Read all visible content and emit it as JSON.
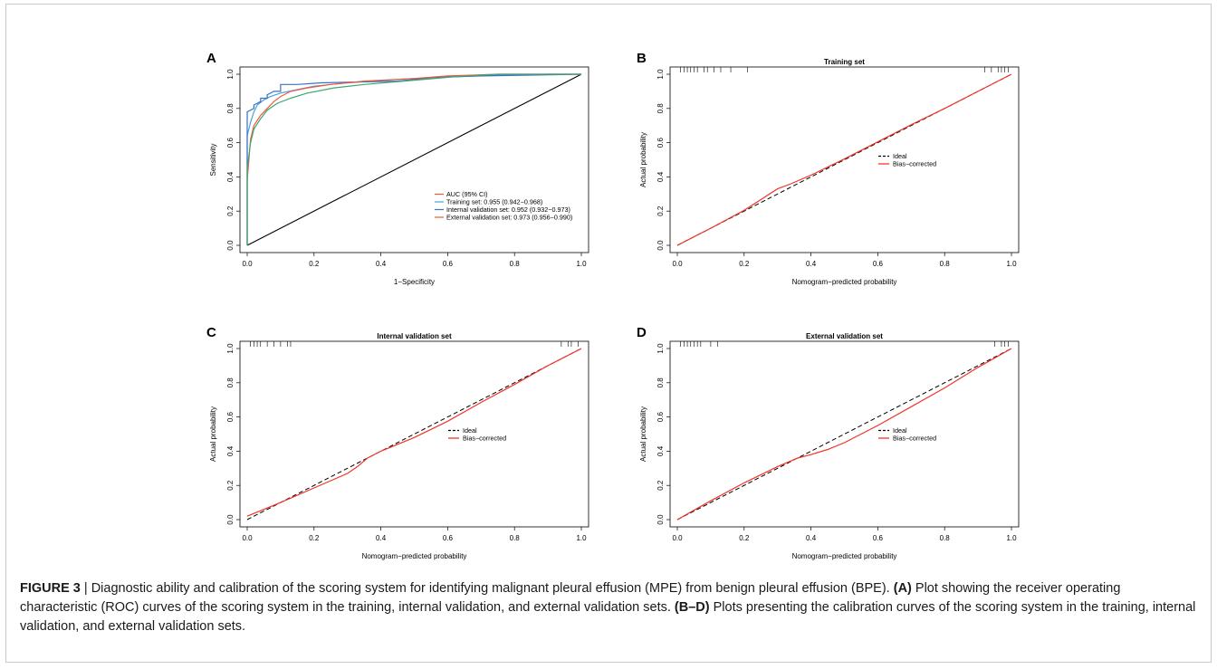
{
  "caption": {
    "figure_label": "FIGURE 3",
    "separator": " | ",
    "part1": "Diagnostic ability and calibration of the scoring system for identifying malignant pleural effusion (MPE) from benign pleural effusion (BPE). ",
    "ref_a": "(A)",
    "part2": " Plot showing the receiver operating characteristic (ROC) curves of the scoring system in the training, internal validation, and external validation sets. ",
    "ref_bd": "(B–D)",
    "part3": " Plots presenting the calibration curves of the scoring system in the training, internal validation, and external validation sets."
  },
  "colors": {
    "red": "#f0342a",
    "training": "#4aa0d8",
    "internal": "#3a70c8",
    "external_green": "#3aa870",
    "external_red": "#f05a3a",
    "diag": "#000000"
  },
  "chart_data": [
    {
      "panel": "A",
      "type": "line",
      "title": "",
      "xlabel": "1−Specificity",
      "ylabel": "Sensitivity",
      "xlim": [
        0,
        1
      ],
      "ylim": [
        0,
        1
      ],
      "xticks": [
        "0.0",
        "0.2",
        "0.4",
        "0.6",
        "0.8",
        "1.0"
      ],
      "yticks": [
        "0.0",
        "0.2",
        "0.4",
        "0.6",
        "0.8",
        "1.0"
      ],
      "legend_title": "AUC (95% CI)",
      "legend_position": "bottom-right",
      "series": [
        {
          "name": "Training set: 0.955 (0.942−0.968)",
          "color": "#4aa0d8",
          "x": [
            0,
            0.0,
            0.0,
            0.01,
            0.02,
            0.03,
            0.05,
            0.07,
            0.1,
            0.15,
            0.2,
            0.3,
            0.45,
            0.6,
            0.75,
            0.9,
            1.0
          ],
          "y": [
            0,
            0.4,
            0.64,
            0.72,
            0.78,
            0.82,
            0.85,
            0.87,
            0.89,
            0.91,
            0.93,
            0.95,
            0.97,
            0.985,
            0.995,
            1.0,
            1.0
          ]
        },
        {
          "name": "Internal validation set: 0.952 (0.932−0.973)",
          "color": "#3a70c8",
          "x": [
            0,
            0.0,
            0.0,
            0.02,
            0.02,
            0.04,
            0.04,
            0.06,
            0.06,
            0.08,
            0.1,
            0.1,
            0.15,
            0.22,
            0.45,
            0.55,
            0.7,
            1.0
          ],
          "y": [
            0,
            0.0,
            0.78,
            0.8,
            0.82,
            0.84,
            0.86,
            0.86,
            0.88,
            0.9,
            0.9,
            0.94,
            0.94,
            0.95,
            0.96,
            0.98,
            0.99,
            1.0
          ]
        },
        {
          "name": "External validation set: 0.973 (0.956−0.990)",
          "color": "#f05a3a",
          "x": [
            0,
            0.0,
            0.01,
            0.02,
            0.04,
            0.06,
            0.08,
            0.1,
            0.13,
            0.18,
            0.25,
            0.35,
            0.5,
            0.6,
            0.75,
            1.0
          ],
          "y": [
            0,
            0.38,
            0.62,
            0.7,
            0.76,
            0.8,
            0.84,
            0.87,
            0.9,
            0.92,
            0.94,
            0.96,
            0.975,
            0.99,
            1.0,
            1.0
          ]
        },
        {
          "name": "",
          "color": "#3aa870",
          "x": [
            0,
            0.0,
            0.01,
            0.02,
            0.04,
            0.06,
            0.09,
            0.13,
            0.18,
            0.26,
            0.35,
            0.5,
            0.62,
            0.75,
            1.0
          ],
          "y": [
            0,
            0.45,
            0.6,
            0.68,
            0.74,
            0.79,
            0.83,
            0.86,
            0.89,
            0.92,
            0.94,
            0.965,
            0.985,
            1.0,
            1.0
          ]
        }
      ]
    },
    {
      "panel": "B",
      "type": "line",
      "title": "Training set",
      "xlabel": "Nomogram−predicted probability",
      "ylabel": "Actual probability",
      "xlim": [
        0,
        1
      ],
      "ylim": [
        0,
        1
      ],
      "xticks": [
        "0.0",
        "0.2",
        "0.4",
        "0.6",
        "0.8",
        "1.0"
      ],
      "yticks": [
        "0.0",
        "0.2",
        "0.4",
        "0.6",
        "0.8",
        "1.0"
      ],
      "legend_position": "right",
      "series": [
        {
          "name": "Ideal",
          "style": "dashed",
          "color": "#000000",
          "x": [
            0,
            1
          ],
          "y": [
            0,
            1
          ]
        },
        {
          "name": "Bias−corrected",
          "color": "#f0342a",
          "x": [
            0.0,
            0.1,
            0.2,
            0.26,
            0.3,
            0.34,
            0.4,
            0.5,
            0.6,
            0.7,
            0.8,
            0.9,
            1.0
          ],
          "y": [
            0.0,
            0.1,
            0.205,
            0.28,
            0.33,
            0.36,
            0.41,
            0.505,
            0.605,
            0.705,
            0.8,
            0.9,
            1.0
          ]
        }
      ],
      "rug_ticks": [
        0.01,
        0.02,
        0.03,
        0.04,
        0.05,
        0.06,
        0.08,
        0.09,
        0.11,
        0.13,
        0.16,
        0.21,
        0.92,
        0.94,
        0.96,
        0.97,
        0.98,
        0.99
      ]
    },
    {
      "panel": "C",
      "type": "line",
      "title": "Internal validation set",
      "xlabel": "Nomogram−predicted probability",
      "ylabel": "Actual probability",
      "xlim": [
        0,
        1
      ],
      "ylim": [
        0,
        1
      ],
      "xticks": [
        "0.0",
        "0.2",
        "0.4",
        "0.6",
        "0.8",
        "1.0"
      ],
      "yticks": [
        "0.0",
        "0.2",
        "0.4",
        "0.6",
        "0.8",
        "1.0"
      ],
      "legend_position": "right",
      "series": [
        {
          "name": "Ideal",
          "style": "dashed",
          "color": "#000000",
          "x": [
            0,
            1
          ],
          "y": [
            0,
            1
          ]
        },
        {
          "name": "Bias−corrected",
          "color": "#f0342a",
          "x": [
            0.0,
            0.1,
            0.2,
            0.3,
            0.33,
            0.36,
            0.4,
            0.5,
            0.6,
            0.7,
            0.8,
            0.9,
            1.0
          ],
          "y": [
            0.02,
            0.1,
            0.185,
            0.27,
            0.31,
            0.36,
            0.4,
            0.48,
            0.575,
            0.685,
            0.79,
            0.9,
            1.0
          ]
        }
      ],
      "rug_ticks": [
        0.01,
        0.02,
        0.03,
        0.04,
        0.06,
        0.08,
        0.1,
        0.12,
        0.13,
        0.94,
        0.96,
        0.97,
        0.99
      ]
    },
    {
      "panel": "D",
      "type": "line",
      "title": "External validation set",
      "xlabel": "Nomogram−predicted probability",
      "ylabel": "Actual probability",
      "xlim": [
        0,
        1
      ],
      "ylim": [
        0,
        1
      ],
      "xticks": [
        "0.0",
        "0.2",
        "0.4",
        "0.6",
        "0.8",
        "1.0"
      ],
      "yticks": [
        "0.0",
        "0.2",
        "0.4",
        "0.6",
        "0.8",
        "1.0"
      ],
      "legend_position": "right",
      "series": [
        {
          "name": "Ideal",
          "style": "dashed",
          "color": "#000000",
          "x": [
            0,
            1
          ],
          "y": [
            0,
            1
          ]
        },
        {
          "name": "Bias−corrected",
          "color": "#f0342a",
          "x": [
            0.0,
            0.1,
            0.2,
            0.3,
            0.36,
            0.4,
            0.45,
            0.5,
            0.6,
            0.7,
            0.8,
            0.9,
            1.0
          ],
          "y": [
            0.0,
            0.11,
            0.215,
            0.31,
            0.36,
            0.38,
            0.41,
            0.45,
            0.55,
            0.66,
            0.77,
            0.89,
            1.0
          ]
        }
      ],
      "rug_ticks": [
        0.01,
        0.02,
        0.03,
        0.04,
        0.05,
        0.06,
        0.07,
        0.1,
        0.12,
        0.95,
        0.97,
        0.98,
        0.99
      ]
    }
  ]
}
